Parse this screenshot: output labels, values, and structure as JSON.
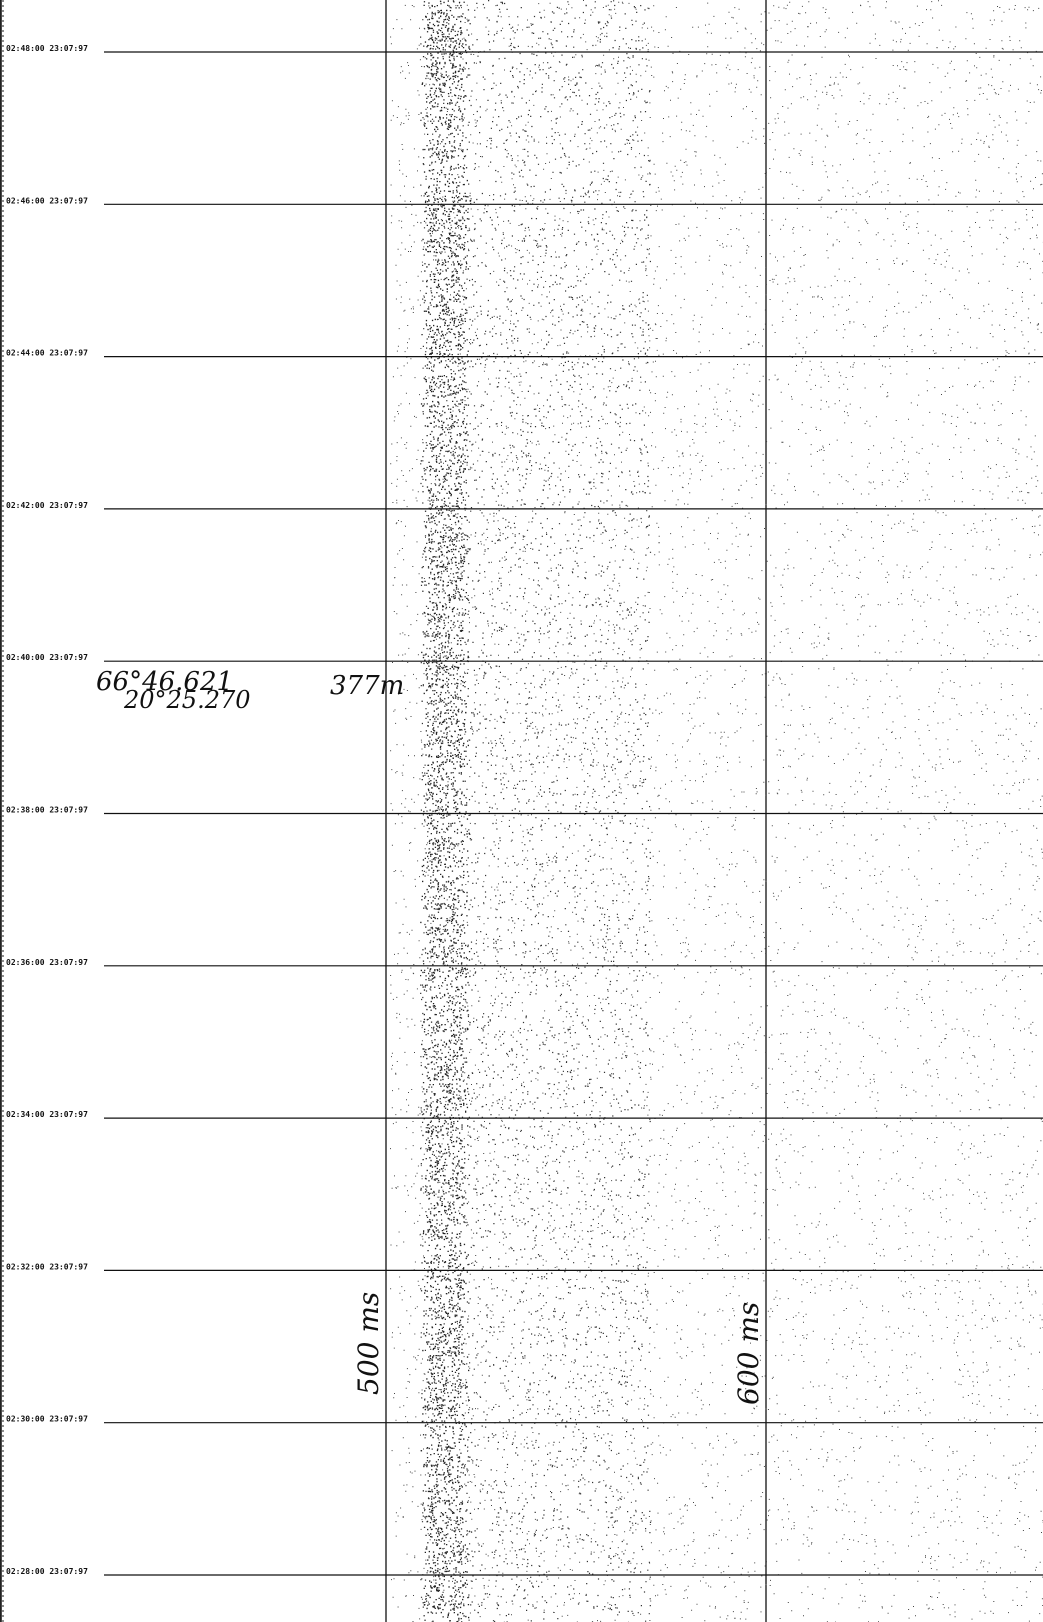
{
  "record": {
    "time_marks": [
      "02:48:00 23:07:97",
      "02:46:00 23:07:97",
      "02:44:00 23:07:97",
      "02:42:00 23:07:97",
      "02:40:00 23:07:97",
      "02:38:00 23:07:97",
      "02:36:00 23:07:97",
      "02:34:00 23:07:97",
      "02:32:00 23:07:97",
      "02:30:00 23:07:97",
      "02:28:00 23:07:97"
    ],
    "annotations": {
      "latitude": "66°46.621",
      "longitude": "20°25.270",
      "depth": "377m",
      "scale_left": "500 ms",
      "scale_right": "600 ms"
    }
  }
}
